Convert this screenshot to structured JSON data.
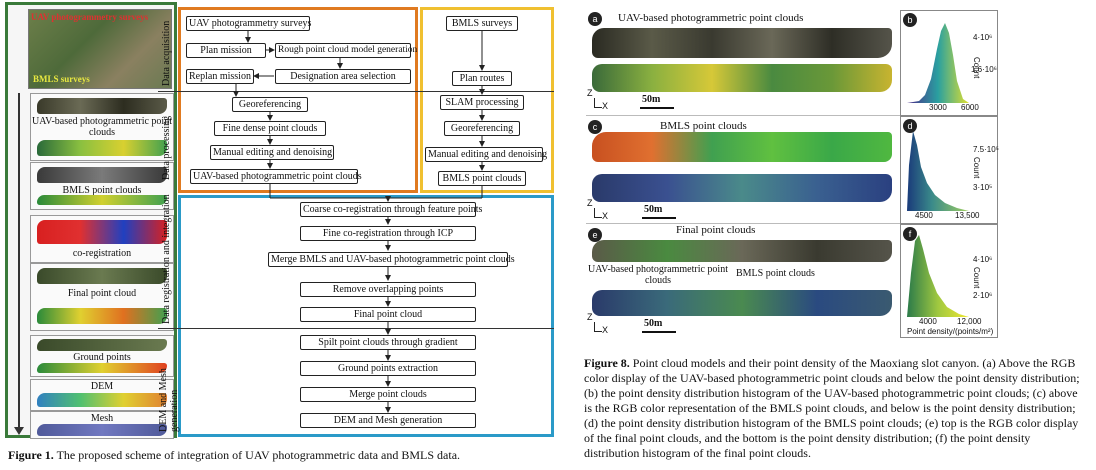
{
  "fig1": {
    "left_top_label": "UAV photogrammetry surveys",
    "left_top_sub": "BMLS surveys",
    "thumbs": [
      {
        "label": "UAV-based photogrammetric point clouds"
      },
      {
        "label": "BMLS point clouds"
      },
      {
        "label": "co-registration"
      },
      {
        "label": "Final point cloud"
      },
      {
        "label": "Ground points"
      },
      {
        "label": "DEM"
      },
      {
        "label": "Mesh"
      }
    ],
    "sections": {
      "acquisition": "Data acquisition",
      "processing": "Data processing",
      "registration": "Data registration and integration",
      "mesh": "DEM and Mesh generation"
    },
    "uav_nodes": {
      "surveys": "UAV photogrammetry surveys",
      "plan": "Plan mission",
      "rough": "Rough point cloud model generation",
      "replan": "Replan mission",
      "designation": "Designation area selection",
      "georef": "Georeferencing",
      "fine": "Fine dense point clouds",
      "manual": "Manual editing and denoising",
      "output": "UAV-based photogrammetric point clouds"
    },
    "bmls_nodes": {
      "surveys": "BMLS surveys",
      "plan": "Plan routes",
      "slam": "SLAM processing",
      "georef": "Georeferencing",
      "manual": "Manual editing and denoising",
      "output": "BMLS point clouds"
    },
    "reg_nodes": [
      "Coarse co-registration  through feature points",
      "Fine co-registration  through ICP",
      "Merge BMLS and UAV-based photogrammetric point clouds",
      "Remove overlapping points",
      "Final point cloud",
      "Spilt point clouds through gradient",
      "Ground points extraction",
      "Merge point clouds",
      "DEM and Mesh generation"
    ],
    "caption_bold": "Figure 1.",
    "caption": " The proposed scheme of integration of UAV photogrammetric data and BMLS data."
  },
  "fig8": {
    "panels": [
      {
        "letter": "a",
        "title": "UAV-based photogrammetric point clouds",
        "scale": "50m"
      },
      {
        "letter": "c",
        "title": "BMLS point clouds",
        "scale": "50m"
      },
      {
        "letter": "e",
        "title": "Final point clouds",
        "scale": "50m",
        "ann1": "UAV-based photogrammetric point clouds",
        "ann2": "BMLS point clouds"
      }
    ],
    "axis_z": "Z",
    "axis_x": "X",
    "hists": [
      {
        "letter": "b",
        "y_ticks": [
          "4·10⁶",
          "1.6·10⁶"
        ],
        "x_ticks": [
          "3000",
          "6000"
        ],
        "ylabel": "Count",
        "xlabel": ""
      },
      {
        "letter": "d",
        "y_ticks": [
          "7.5·10⁵",
          "3·10⁵"
        ],
        "x_ticks": [
          "4500",
          "13,500"
        ],
        "ylabel": "Count",
        "xlabel": ""
      },
      {
        "letter": "f",
        "y_ticks": [
          "4·10⁶",
          "2·10⁶"
        ],
        "x_ticks": [
          "4000",
          "12,000"
        ],
        "ylabel": "Count",
        "xlabel": "Point density/(points/m²)"
      }
    ],
    "caption_bold": "Figure 8.",
    "caption": " Point cloud models and their point density of the Maoxiang slot canyon. (a) Above the RGB color display of the UAV-based photogrammetric point clouds and below the point density distribution; (b) the point density distribution histogram of the UAV-based photogrammetric point clouds; (c) above is the RGB color representation of the BMLS point clouds, and below is the point density distribution; (d) the point density distribution histogram of the BMLS point clouds; (e) top is the RGB color display of the final point clouds, and the bottom is the point density distribution; (f) the point density distribution histogram of the final point clouds."
  }
}
